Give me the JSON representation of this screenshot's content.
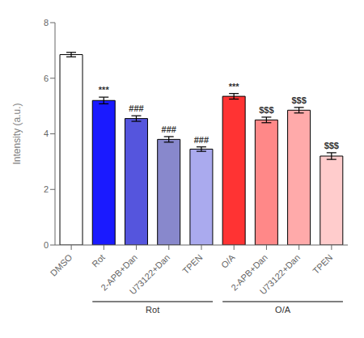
{
  "chart_data": {
    "type": "bar",
    "categories": [
      "DMSO",
      "Rot",
      "2-APB+Dan",
      "U73122+Dan",
      "TPEN",
      "O/A",
      "2-APB+Dan",
      "U73122+Dan",
      "TPEN"
    ],
    "values": [
      6.85,
      5.2,
      4.55,
      3.8,
      3.45,
      5.35,
      4.5,
      4.85,
      3.2
    ],
    "errors": [
      0.08,
      0.12,
      0.1,
      0.1,
      0.08,
      0.1,
      0.1,
      0.1,
      0.12
    ],
    "colors": [
      "#ffffff",
      "#1a1aff",
      "#5555dd",
      "#8888cc",
      "#aaaaee",
      "#ff3333",
      "#ff8888",
      "#ffaaaa",
      "#ffcccc"
    ],
    "ylabel": "Intensity (a.u.)",
    "ylim": [
      0,
      8
    ],
    "yticks": [
      0,
      2,
      4,
      6,
      8
    ],
    "significance": [
      null,
      "***",
      "###",
      "###",
      "###",
      "***",
      "$$$",
      "$$$",
      "$$$"
    ],
    "groups": [
      {
        "label": "Rot",
        "from": 1,
        "to": 4
      },
      {
        "label": "O/A",
        "from": 5,
        "to": 8
      }
    ],
    "grid": false
  }
}
